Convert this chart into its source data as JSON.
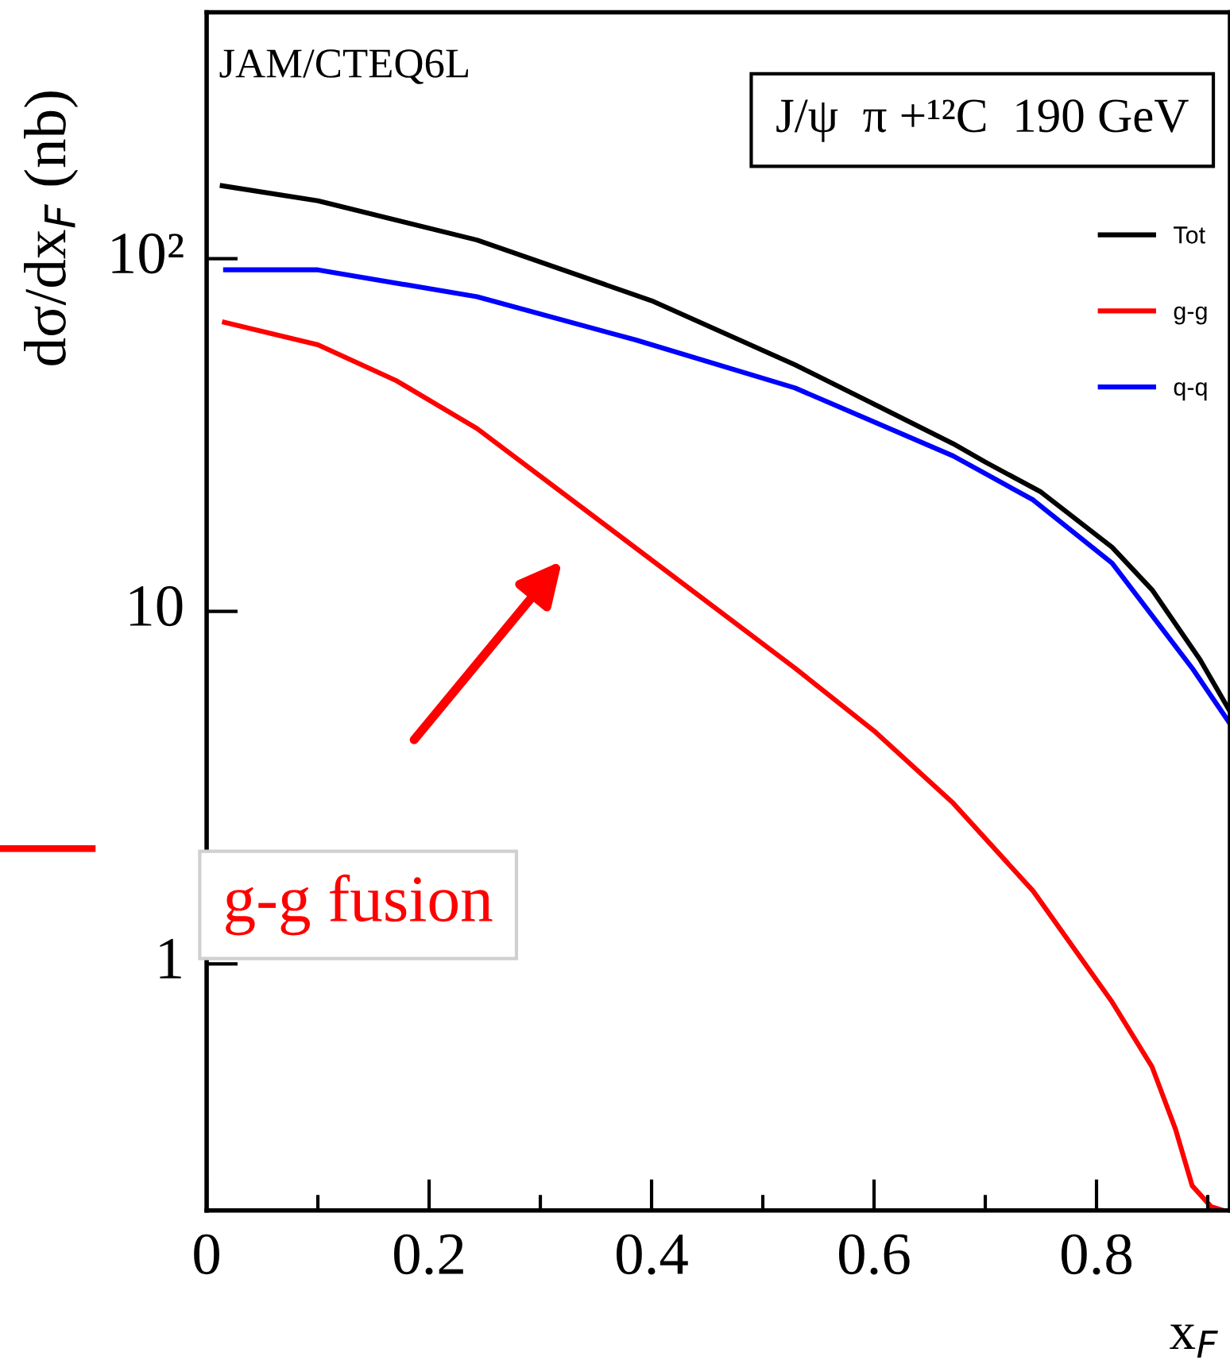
{
  "chart_data": {
    "type": "line",
    "xlabel": "x$_{F}$",
    "ylabel": "dσ/dx$_{F}$ (nb)",
    "xlim": [
      0,
      0.92
    ],
    "xticks": [
      0,
      0.2,
      0.4,
      0.6,
      0.8
    ],
    "ylim": [
      0.2,
      500
    ],
    "yticks": [
      {
        "value": 1,
        "label": "1"
      },
      {
        "value": 10,
        "label": "10"
      },
      {
        "value": 100,
        "label": "10²"
      }
    ],
    "log": "y",
    "grid": false,
    "legend": "top right",
    "marker": "none",
    "line_style": "solid",
    "annotations": [
      "JAM/CTEQ6L",
      "J/ψ  π +¹²C  190 GeV",
      "g-g fusion"
    ],
    "series": [
      {
        "name": "Tot",
        "color": "#000000",
        "x": [
          0.014,
          0.1,
          0.243,
          0.4,
          0.529,
          0.6,
          0.671,
          0.7,
          0.75,
          0.814,
          0.85,
          0.893,
          0.92
        ],
        "values": [
          161,
          146,
          113,
          76,
          50,
          38.7,
          29.9,
          26.5,
          21.8,
          15.2,
          11.5,
          7.3,
          5.2
        ]
      },
      {
        "name": "g-g",
        "color": "#ff0000",
        "x": [
          0.016,
          0.1,
          0.171,
          0.243,
          0.357,
          0.529,
          0.6,
          0.671,
          0.743,
          0.814,
          0.85,
          0.871,
          0.886,
          0.903,
          0.914
        ],
        "values": [
          66,
          57,
          45,
          33,
          17.7,
          6.9,
          4.58,
          2.86,
          1.61,
          0.78,
          0.51,
          0.34,
          0.235,
          0.205,
          0.2
        ]
      },
      {
        "name": "q-q",
        "color": "#0000ff",
        "x": [
          0.017,
          0.1,
          0.243,
          0.386,
          0.529,
          0.671,
          0.743,
          0.814,
          0.886,
          0.92
        ],
        "values": [
          93,
          93,
          78,
          58.8,
          43,
          27.6,
          20.7,
          13.7,
          6.9,
          4.8
        ]
      }
    ]
  }
}
